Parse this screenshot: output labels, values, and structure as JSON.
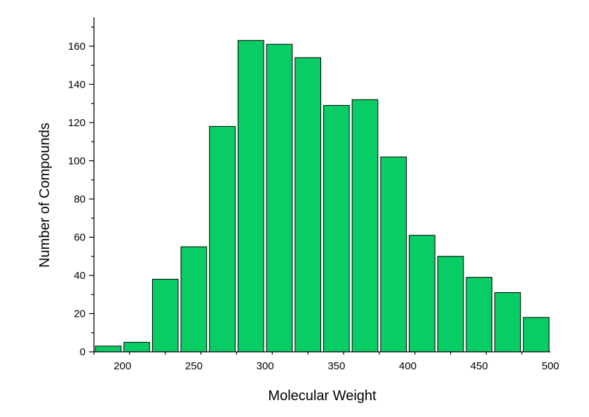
{
  "chart_data": {
    "type": "bar",
    "title": "",
    "xlabel": "Molecular Weight",
    "ylabel": "Number of Compounds",
    "x": [
      190,
      210,
      230,
      250,
      270,
      290,
      310,
      330,
      350,
      370,
      390,
      410,
      430,
      450,
      470,
      490
    ],
    "values": [
      3,
      5,
      38,
      55,
      118,
      163,
      161,
      154,
      129,
      132,
      102,
      61,
      50,
      39,
      31,
      18
    ],
    "bin_width": 20,
    "xlim": [
      180,
      500
    ],
    "ylim": [
      0,
      175
    ],
    "x_ticks": [
      200,
      250,
      300,
      350,
      400,
      450,
      500
    ],
    "y_ticks": [
      0,
      20,
      40,
      60,
      80,
      100,
      120,
      140,
      160
    ],
    "grid": false,
    "legend": "none",
    "colors": {
      "bar": "#08cc64",
      "edge": "#000000"
    }
  }
}
